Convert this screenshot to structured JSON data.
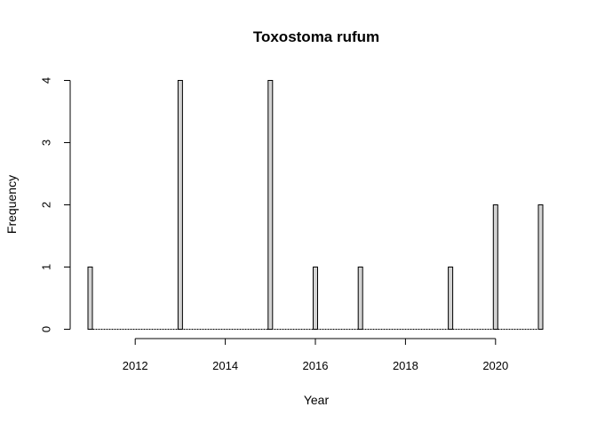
{
  "chart_data": {
    "type": "bar",
    "title": "Toxostoma rufum",
    "xlabel": "Year",
    "ylabel": "Frequency",
    "xlim": [
      2011,
      2021
    ],
    "ylim": [
      0,
      4
    ],
    "x_ticks": [
      2012,
      2014,
      2016,
      2018,
      2020
    ],
    "y_ticks": [
      0,
      1,
      2,
      3,
      4
    ],
    "x": [
      2011,
      2013,
      2015,
      2016,
      2017,
      2019,
      2020,
      2021
    ],
    "values": [
      1,
      4,
      4,
      1,
      1,
      1,
      2,
      2
    ],
    "bar_fill": "#d3d3d3",
    "bar_stroke": "#000000",
    "grid": false,
    "legend": "none"
  }
}
